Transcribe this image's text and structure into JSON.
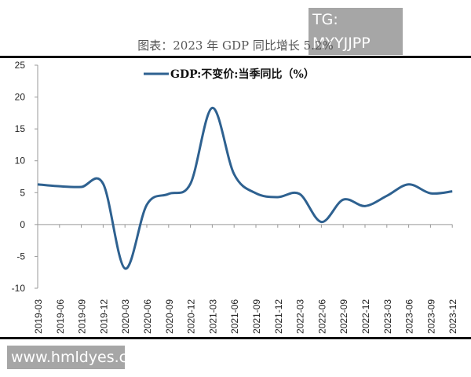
{
  "watermarks": {
    "top": "TG: MYYJJPP",
    "bottom": "www.hmldyes.com"
  },
  "page_title": "图表：2023 年 GDP 同比增长 5.2%",
  "chart_data": {
    "type": "line",
    "title": "",
    "legend": {
      "label": "GDP:不变价:当季同比（%）",
      "placement": "top-center"
    },
    "categories": [
      "2019-03",
      "2019-06",
      "2019-09",
      "2019-12",
      "2020-03",
      "2020-06",
      "2020-09",
      "2020-12",
      "2021-03",
      "2021-06",
      "2021-09",
      "2021-12",
      "2022-03",
      "2022-06",
      "2022-09",
      "2022-12",
      "2023-03",
      "2023-06",
      "2023-09",
      "2023-12"
    ],
    "series": [
      {
        "name": "GDP:不变价:当季同比（%）",
        "values": [
          6.3,
          6.0,
          5.9,
          6.4,
          -6.9,
          3.1,
          4.8,
          6.4,
          18.3,
          7.9,
          4.9,
          4.3,
          4.8,
          0.4,
          3.9,
          2.9,
          4.5,
          6.3,
          4.9,
          5.2
        ],
        "color": "#2e6190"
      }
    ],
    "ylim": [
      -10,
      25
    ],
    "yticks": [
      "25",
      "20",
      "15",
      "10",
      "5",
      "0",
      "-5",
      "-10"
    ],
    "grid": false
  }
}
